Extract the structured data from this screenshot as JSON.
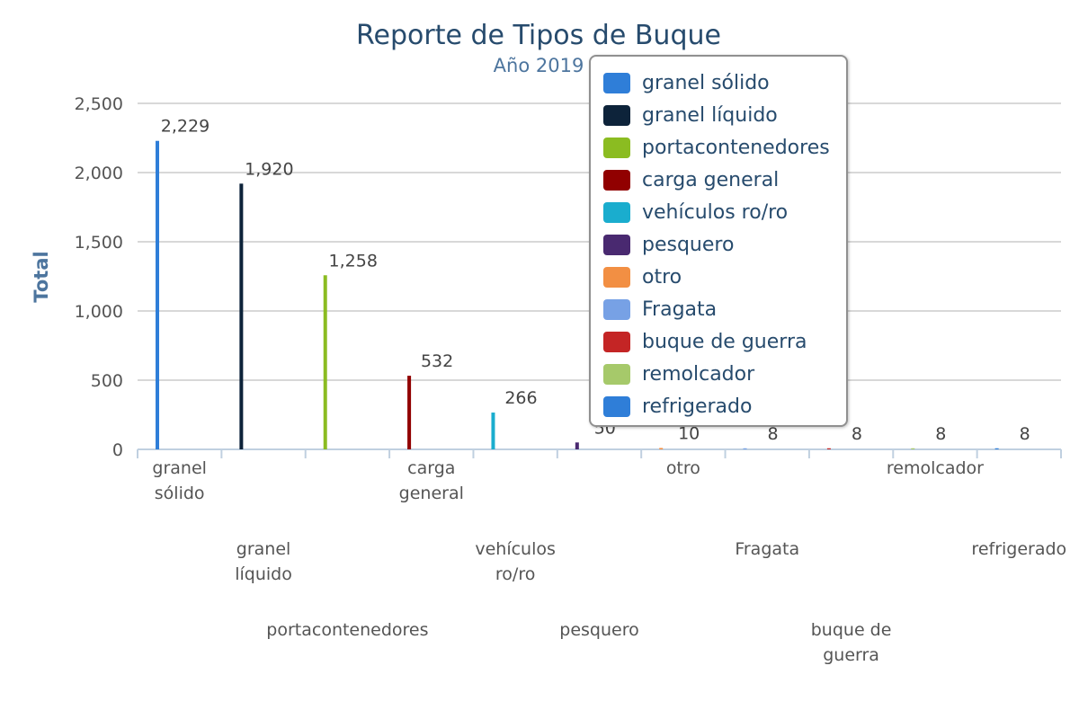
{
  "chart_data": {
    "type": "bar",
    "title": "Reporte de Tipos de Buque",
    "subtitle": "Año 2019",
    "xlabel": "",
    "ylabel": "Total",
    "ylim": [
      0,
      2500
    ],
    "yticks": [
      0,
      500,
      1000,
      1500,
      2000,
      2500
    ],
    "ytick_labels": [
      "0",
      "500",
      "1,000",
      "1,500",
      "2,000",
      "2,500"
    ],
    "grid": true,
    "legend_position": "top-right",
    "categories": [
      "granel sólido",
      "granel líquido",
      "portacontenedores",
      "carga general",
      "vehículos ro/ro",
      "pesquero",
      "otro",
      "Fragata",
      "buque de guerra",
      "remolcador",
      "refrigerado"
    ],
    "values": [
      2229,
      1920,
      1258,
      532,
      266,
      50,
      10,
      8,
      8,
      8,
      8
    ],
    "data_labels": [
      "2,229",
      "1,920",
      "1,258",
      "532",
      "266",
      "50",
      "10",
      "8",
      "8",
      "8",
      "8"
    ],
    "colors": [
      "#2f7ed8",
      "#0d233a",
      "#8bbc21",
      "#910000",
      "#1aadce",
      "#492970",
      "#f28f43",
      "#77a1e5",
      "#c42525",
      "#a6c96a",
      "#2f7ed8"
    ]
  }
}
